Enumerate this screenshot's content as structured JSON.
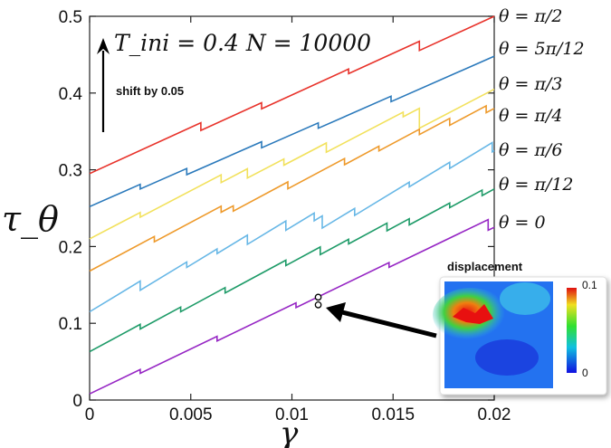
{
  "chart_data": {
    "type": "line",
    "xlabel": "γ",
    "ylabel": "τ_θ",
    "xlim": [
      0,
      0.02
    ],
    "ylim": [
      0,
      0.5
    ],
    "x_ticks": [
      "0",
      "0.005",
      "0.01",
      "0.015",
      "0.02"
    ],
    "y_ticks": [
      "0",
      "0.1",
      "0.2",
      "0.3",
      "0.4",
      "0.5"
    ],
    "annotation_title": "T_ini = 0.4   N = 10000",
    "shift_note": "shift by 0.05",
    "series": [
      {
        "name": "θ = π/2",
        "color": "#e8322a",
        "start": 0.295,
        "end": 0.5,
        "drops": [
          [
            0.0055,
            0.01
          ],
          [
            0.0085,
            0.008
          ],
          [
            0.0128,
            0.006
          ],
          [
            0.0163,
            0.012
          ]
        ]
      },
      {
        "name": "θ = 5π/12",
        "color": "#2a79bb",
        "start": 0.252,
        "end": 0.448,
        "drops": [
          [
            0.0025,
            0.006
          ],
          [
            0.0048,
            0.008
          ],
          [
            0.0085,
            0.008
          ],
          [
            0.0113,
            0.007
          ],
          [
            0.0149,
            0.007
          ]
        ]
      },
      {
        "name": "θ = π/3",
        "color": "#f2e15c",
        "start": 0.21,
        "end": 0.405,
        "drops": [
          [
            0.0025,
            0.006
          ],
          [
            0.0065,
            0.01
          ],
          [
            0.0078,
            0.012
          ],
          [
            0.0096,
            0.008
          ],
          [
            0.0117,
            0.012
          ],
          [
            0.0155,
            0.006
          ],
          [
            0.0163,
            0.026
          ]
        ]
      },
      {
        "name": "θ = π/4",
        "color": "#ee9a2b",
        "start": 0.168,
        "end": 0.38,
        "drops": [
          [
            0.0032,
            0.007
          ],
          [
            0.0065,
            0.008
          ],
          [
            0.0071,
            0.007
          ],
          [
            0.0098,
            0.009
          ],
          [
            0.0126,
            0.008
          ],
          [
            0.0143,
            0.006
          ],
          [
            0.0163,
            0.007
          ],
          [
            0.0178,
            0.009
          ],
          [
            0.0196,
            0.009
          ]
        ]
      },
      {
        "name": "θ = π/6",
        "color": "#67b7e6",
        "start": 0.115,
        "end": 0.325,
        "drops": [
          [
            0.0025,
            0.012
          ],
          [
            0.0048,
            0.007
          ],
          [
            0.0063,
            0.006
          ],
          [
            0.0078,
            0.012
          ],
          [
            0.0097,
            0.012
          ],
          [
            0.0111,
            0.01
          ],
          [
            0.0115,
            0.016
          ],
          [
            0.0131,
            0.009
          ],
          [
            0.0158,
            0.006
          ],
          [
            0.0178,
            0.008
          ],
          [
            0.0199,
            0.012
          ]
        ]
      },
      {
        "name": "θ = π/12",
        "color": "#1e9b68",
        "start": 0.063,
        "end": 0.275,
        "drops": [
          [
            0.0025,
            0.006
          ],
          [
            0.0045,
            0.006
          ],
          [
            0.0067,
            0.007
          ],
          [
            0.0097,
            0.007
          ],
          [
            0.0114,
            0.01
          ],
          [
            0.0128,
            0.006
          ],
          [
            0.0147,
            0.01
          ],
          [
            0.0158,
            0.008
          ],
          [
            0.0178,
            0.006
          ],
          [
            0.0194,
            0.007
          ]
        ]
      },
      {
        "name": "θ = 0",
        "color": "#9626c4",
        "start": 0.008,
        "end": 0.225,
        "drops": [
          [
            0.0025,
            0.005
          ],
          [
            0.0063,
            0.006
          ],
          [
            0.0102,
            0.006
          ],
          [
            0.0148,
            0.006
          ],
          [
            0.0197,
            0.014
          ]
        ]
      }
    ],
    "marked_point": {
      "x": 0.0113,
      "y_top": 0.134,
      "y_bottom": 0.124
    },
    "inset": {
      "title": "displacement",
      "colorbar_max": "0.1",
      "colorbar_min": "0"
    }
  }
}
